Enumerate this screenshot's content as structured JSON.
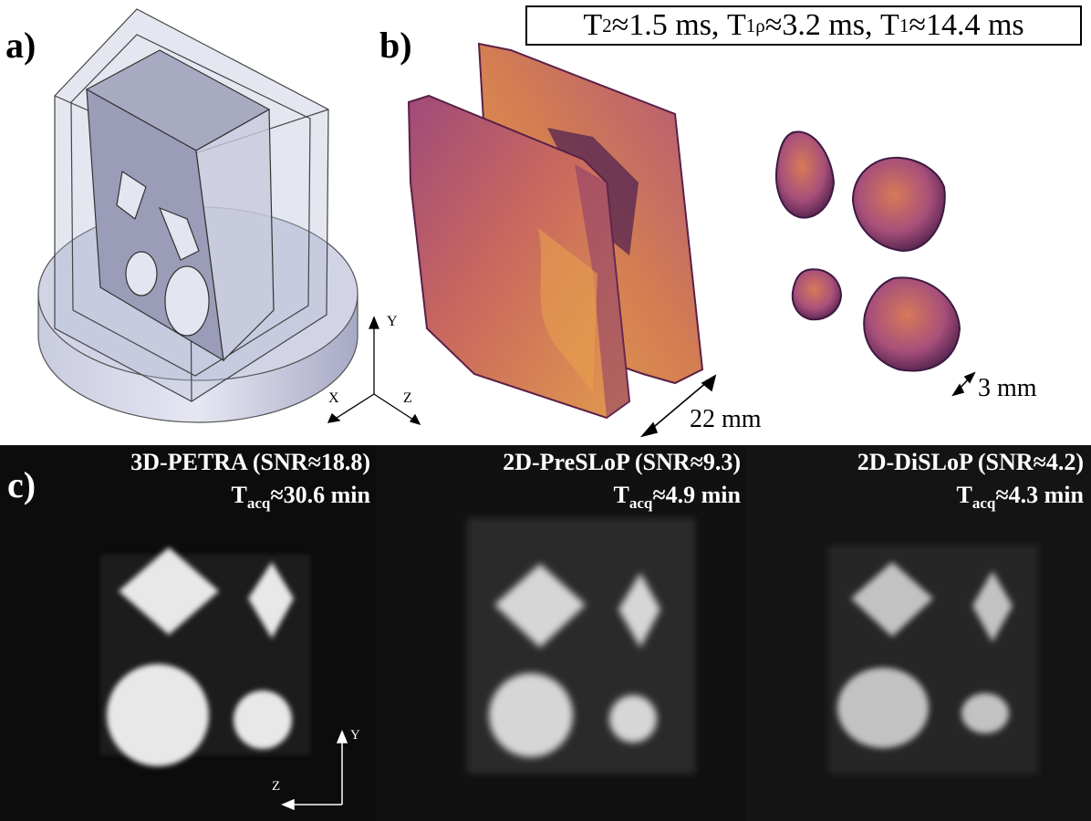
{
  "panel_labels": {
    "a": "a)",
    "b": "b)",
    "c": "c)"
  },
  "relaxation": {
    "t2_sym": "T",
    "t2_sub": "2",
    "t2_val": "≈1.5 ms, ",
    "t1rho_sym": "T",
    "t1rho_sub": "1ρ",
    "t1rho_val": "≈3.2 ms, ",
    "t1_sym": "T",
    "t1_sub": "1",
    "t1_val": "≈14.4 ms"
  },
  "axes_a": {
    "x": "X",
    "y": "Y",
    "z": "Z"
  },
  "scale_bars": {
    "large": "22 mm",
    "small": "3 mm"
  },
  "colors": {
    "render_dark": "#4a2048",
    "render_mid": "#a0487a",
    "render_light": "#e0904a",
    "mri_bg": "#0b0b0b"
  },
  "mri_panels": [
    {
      "title": "3D-PETRA (SNR≈18.8)",
      "tacq_sym": "T",
      "tacq_sub": "acq",
      "tacq_val": "≈30.6 min"
    },
    {
      "title": "2D-PreSLoP (SNR≈9.3)",
      "tacq_sym": "T",
      "tacq_sub": "acq",
      "tacq_val": "≈4.9 min"
    },
    {
      "title": "2D-DiSLoP (SNR≈4.2)",
      "tacq_sym": "T",
      "tacq_sub": "acq",
      "tacq_val": "≈4.3 min"
    }
  ],
  "axes_c": {
    "y": "Y",
    "z": "Z"
  }
}
